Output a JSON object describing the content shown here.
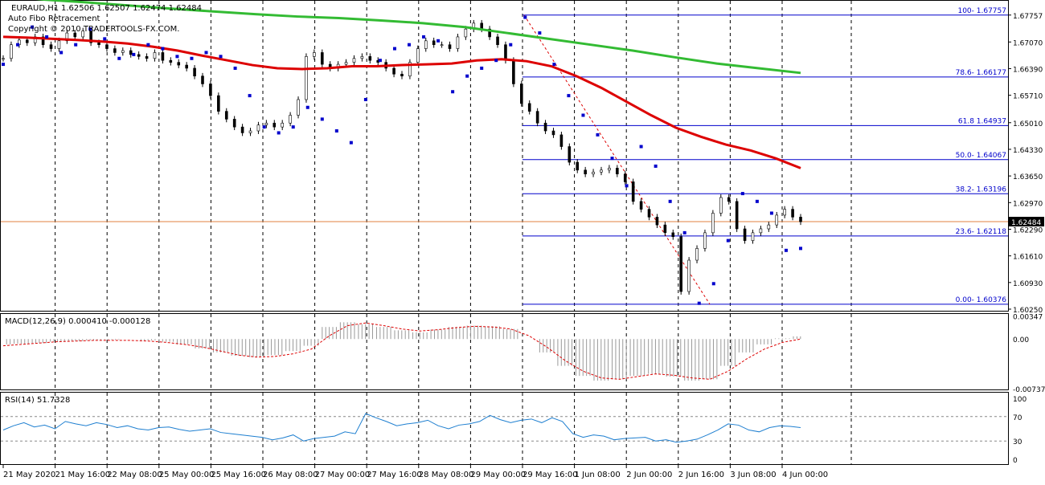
{
  "chart_data": {
    "type": "line",
    "header": {
      "symbol": "EURAUD,H1",
      "ohlc": "1.62506 1.62507 1.62474 1.62484",
      "indicator_name": "Auto Fibo Retracement",
      "copyright": "Copyright © 2010 TRADERTOOLS-FX.COM."
    },
    "price_axis": {
      "range": [
        1.6025,
        1.6808
      ],
      "ticks": [
        "1.67757",
        "1.67070",
        "1.66390",
        "1.65710",
        "1.65010",
        "1.64330",
        "1.63650",
        "1.62970",
        "1.62290",
        "1.61610",
        "1.60930",
        "1.60250"
      ],
      "current": "1.62484"
    },
    "fibo_levels": [
      {
        "label": "100- 1.67757",
        "value": 1.67757
      },
      {
        "label": "78.6- 1.66177",
        "value": 1.66177
      },
      {
        "label": "61.8 1.64937",
        "value": 1.64937
      },
      {
        "label": "50.0- 1.64067",
        "value": 1.64067
      },
      {
        "label": "38.2- 1.63196",
        "value": 1.63196
      },
      {
        "label": "23.6- 1.62118",
        "value": 1.62118
      },
      {
        "label": "0.00- 1.60376",
        "value": 1.60376
      }
    ],
    "x_labels": [
      "21 May 2020",
      "21 May 16:00",
      "22 May 08:00",
      "25 May 00:00",
      "25 May 16:00",
      "26 May 08:00",
      "27 May 00:00",
      "27 May 16:00",
      "28 May 08:00",
      "29 May 00:00",
      "29 May 16:00",
      "1 Jun 08:00",
      "2 Jun 00:00",
      "2 Jun 16:00",
      "3 Jun 08:00",
      "4 Jun 00:00"
    ],
    "series": [
      {
        "kind": "close",
        "color": "#000000",
        "values": [
          1.6665,
          1.67,
          1.6712,
          1.6705,
          1.672,
          1.67,
          1.669,
          1.671,
          1.673,
          1.672,
          1.6735,
          1.6705,
          1.67,
          1.669,
          1.668,
          1.6685,
          1.6675,
          1.667,
          1.6665,
          1.668,
          1.666,
          1.6655,
          1.6648,
          1.664,
          1.662,
          1.66,
          1.657,
          1.653,
          1.651,
          1.649,
          1.6475,
          1.648,
          1.6495,
          1.65,
          1.649,
          1.65,
          1.652,
          1.656,
          1.667,
          1.668,
          1.665,
          1.664,
          1.665,
          1.6655,
          1.6665,
          1.667,
          1.666,
          1.6655,
          1.664,
          1.6625,
          1.662,
          1.6655,
          1.669,
          1.671,
          1.67,
          1.67,
          1.669,
          1.672,
          1.674,
          1.6755,
          1.674,
          1.672,
          1.67,
          1.666,
          1.66,
          1.655,
          1.653,
          1.65,
          1.648,
          1.647,
          1.644,
          1.64,
          1.638,
          1.637,
          1.6375,
          1.638,
          1.6385,
          1.637,
          1.635,
          1.63,
          1.628,
          1.626,
          1.624,
          1.622,
          1.621,
          1.607,
          1.615,
          1.618,
          1.622,
          1.627,
          1.631,
          1.63,
          1.623,
          1.62,
          1.622,
          1.623,
          1.624,
          1.6265,
          1.628,
          1.626,
          1.6248
        ]
      },
      {
        "kind": "ma_fast",
        "color": "#dd0000",
        "values": [
          1.672,
          1.6718,
          1.6715,
          1.6712,
          1.6708,
          1.6703,
          1.6695,
          1.6685,
          1.6672,
          1.666,
          1.6648,
          1.664,
          1.6638,
          1.664,
          1.6645,
          1.6645,
          1.6648,
          1.665,
          1.6652,
          1.666,
          1.6663,
          1.6658,
          1.6645,
          1.662,
          1.659,
          1.6555,
          1.652,
          1.6488,
          1.6465,
          1.6445,
          1.643,
          1.641,
          1.6385
        ]
      },
      {
        "kind": "ma_slow",
        "color": "#33bb33",
        "values": [
          1.6825,
          1.6815,
          1.6808,
          1.68,
          1.6792,
          1.6785,
          1.6778,
          1.6772,
          1.6768,
          1.6762,
          1.6755,
          1.6745,
          1.673,
          1.6715,
          1.67,
          1.6685,
          1.6668,
          1.6652,
          1.664,
          1.6628
        ]
      },
      {
        "kind": "psar",
        "color": "#0000cc",
        "values": [
          1.665,
          1.67,
          1.6745,
          1.672,
          1.668,
          1.67,
          1.674,
          1.6715,
          1.6665,
          1.6675,
          1.67,
          1.669,
          1.667,
          1.6665,
          1.668,
          1.667,
          1.664,
          1.657,
          1.649,
          1.6475,
          1.649,
          1.654,
          1.651,
          1.648,
          1.645,
          1.656,
          1.666,
          1.669,
          1.67,
          1.672,
          1.671,
          1.658,
          1.662,
          1.664,
          1.666,
          1.67,
          1.677,
          1.673,
          1.665,
          1.657,
          1.652,
          1.647,
          1.641,
          1.634,
          1.644,
          1.639,
          1.63,
          1.622,
          1.604,
          1.609,
          1.62,
          1.632,
          1.63,
          1.627,
          1.6175,
          1.618
        ]
      }
    ],
    "macd": {
      "label": "MACD(12,26,9) 0.000410 -0.000128",
      "ticks": [
        "0.00347",
        "0.00",
        "-0.007379"
      ],
      "range": [
        -0.0074,
        0.0035
      ],
      "histogram": [
        -0.0008,
        -0.0007,
        -0.0006,
        -0.0004,
        -0.0003,
        -0.0002,
        -0.0001,
        0.0,
        -0.0002,
        -0.0004,
        -0.0008,
        -0.0014,
        -0.002,
        -0.0025,
        -0.0027,
        -0.0024,
        -0.0018,
        -0.001,
        0.0018,
        0.0025,
        0.0022,
        0.0018,
        0.0013,
        0.001,
        0.0014,
        0.0018,
        0.002,
        0.0019,
        0.0015,
        0.0,
        -0.002,
        -0.004,
        -0.0055,
        -0.0062,
        -0.006,
        -0.0055,
        -0.0052,
        -0.0056,
        -0.0062,
        -0.006,
        -0.004,
        -0.002,
        -0.0008,
        0.0001,
        0.0004
      ],
      "signal": [
        -0.001,
        -0.0008,
        -0.0006,
        -0.0004,
        -0.0003,
        -0.0002,
        -0.0002,
        -0.0002,
        -0.0003,
        -0.0005,
        -0.0008,
        -0.0012,
        -0.0018,
        -0.0024,
        -0.0027,
        -0.0026,
        -0.0022,
        -0.0015,
        0.0005,
        0.002,
        0.0024,
        0.002,
        0.0015,
        0.0012,
        0.0014,
        0.0017,
        0.0019,
        0.0018,
        0.0015,
        0.0005,
        -0.0012,
        -0.0032,
        -0.0048,
        -0.0058,
        -0.006,
        -0.0056,
        -0.0052,
        -0.0054,
        -0.0058,
        -0.006,
        -0.0048,
        -0.003,
        -0.0015,
        -0.0005,
        0.0
      ]
    },
    "rsi": {
      "label": "RSI(14) 51.7328",
      "ticks": [
        "100",
        "70",
        "30",
        "0"
      ],
      "levels": [
        70,
        30
      ],
      "values": [
        48,
        55,
        60,
        53,
        56,
        50,
        62,
        58,
        55,
        60,
        57,
        52,
        55,
        50,
        48,
        52,
        53,
        49,
        46,
        48,
        50,
        44,
        42,
        40,
        38,
        36,
        32,
        35,
        40,
        30,
        34,
        36,
        38,
        45,
        42,
        75,
        68,
        62,
        55,
        58,
        60,
        64,
        55,
        50,
        56,
        58,
        62,
        72,
        65,
        60,
        64,
        66,
        60,
        68,
        62,
        42,
        36,
        40,
        38,
        32,
        34,
        35,
        36,
        30,
        32,
        28,
        30,
        33,
        40,
        48,
        58,
        56,
        48,
        45,
        52,
        55,
        54,
        52
      ]
    }
  }
}
